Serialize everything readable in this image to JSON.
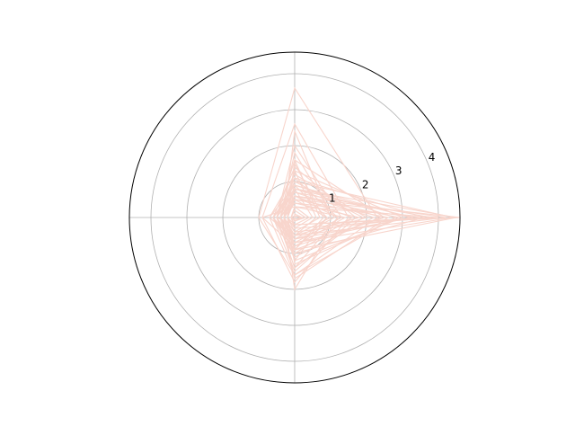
{
  "chart_data": {
    "type": "line",
    "projection": "polar",
    "axes": 4,
    "rlim": [
      0,
      4.6
    ],
    "rticks": [
      "1",
      "2",
      "3",
      "4"
    ],
    "rtick_values": [
      1,
      2,
      3,
      4
    ],
    "grid": true,
    "line_color": "#f8d5cc",
    "series": [
      {
        "values": [
          0.6,
          1.3,
          0.3,
          0.5
        ]
      },
      {
        "values": [
          0.8,
          1.5,
          0.2,
          0.9
        ]
      },
      {
        "values": [
          1.2,
          1.1,
          0.5,
          1.4
        ]
      },
      {
        "values": [
          1.5,
          2.6,
          0.9,
          1.8
        ]
      },
      {
        "values": [
          2.3,
          3.6,
          1.0,
          1.6
        ]
      },
      {
        "values": [
          0.9,
          0.9,
          0.3,
          1.2
        ]
      },
      {
        "values": [
          4.4,
          1.0,
          0.4,
          0.7
        ]
      },
      {
        "values": [
          4.5,
          0.8,
          0.6,
          0.9
        ]
      },
      {
        "values": [
          4.6,
          0.5,
          0.2,
          0.2
        ]
      },
      {
        "values": [
          4.2,
          0.6,
          0.4,
          0.5
        ]
      },
      {
        "values": [
          4.0,
          0.3,
          0.1,
          0.3
        ]
      },
      {
        "values": [
          3.8,
          0.7,
          0.5,
          0.2
        ]
      },
      {
        "values": [
          3.5,
          0.4,
          0.3,
          0.4
        ]
      },
      {
        "values": [
          3.2,
          0.9,
          0.6,
          0.7
        ]
      },
      {
        "values": [
          2.9,
          0.6,
          0.2,
          1.3
        ]
      },
      {
        "values": [
          2.6,
          0.5,
          0.4,
          1.7
        ]
      },
      {
        "values": [
          2.4,
          0.8,
          0.3,
          0.9
        ]
      },
      {
        "values": [
          2.0,
          1.2,
          0.7,
          0.6
        ]
      },
      {
        "values": [
          1.8,
          0.4,
          0.3,
          0.5
        ]
      },
      {
        "values": [
          1.6,
          0.6,
          0.4,
          1.0
        ]
      },
      {
        "values": [
          1.4,
          0.3,
          0.9,
          0.8
        ]
      },
      {
        "values": [
          1.9,
          1.0,
          0.5,
          1.4
        ]
      },
      {
        "values": [
          2.2,
          0.7,
          0.6,
          1.1
        ]
      },
      {
        "values": [
          1.1,
          1.8,
          0.4,
          0.6
        ]
      },
      {
        "values": [
          0.7,
          1.6,
          0.2,
          0.4
        ]
      },
      {
        "values": [
          1.3,
          2.0,
          0.5,
          0.7
        ]
      },
      {
        "values": [
          1.0,
          2.4,
          0.3,
          0.5
        ]
      },
      {
        "values": [
          0.5,
          0.8,
          0.2,
          0.3
        ]
      },
      {
        "values": [
          0.4,
          0.3,
          0.1,
          0.2
        ]
      },
      {
        "values": [
          0.3,
          0.2,
          0.1,
          0.1
        ]
      },
      {
        "values": [
          0.2,
          0.1,
          0.0,
          0.1
        ]
      },
      {
        "values": [
          0.2,
          0.05,
          0.1,
          0.05
        ]
      },
      {
        "values": [
          1.7,
          1.4,
          0.6,
          1.5
        ]
      },
      {
        "values": [
          3.0,
          1.3,
          0.4,
          1.2
        ]
      },
      {
        "values": [
          3.6,
          1.1,
          0.5,
          1.0
        ]
      },
      {
        "values": [
          2.8,
          0.9,
          0.7,
          1.6
        ]
      },
      {
        "values": [
          1.2,
          0.6,
          0.3,
          2.0
        ]
      },
      {
        "values": [
          0.9,
          0.5,
          0.2,
          0.9
        ]
      },
      {
        "values": [
          2.5,
          1.6,
          0.5,
          0.8
        ]
      },
      {
        "values": [
          3.3,
          0.8,
          0.3,
          0.6
        ]
      }
    ]
  }
}
